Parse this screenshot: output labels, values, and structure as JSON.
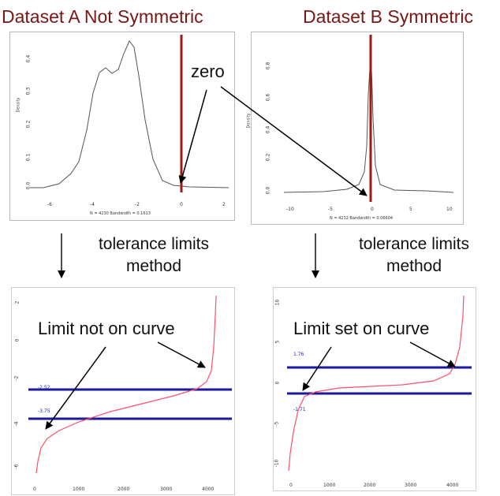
{
  "titles": {
    "a": "Dataset A Not Symmetric",
    "b": "Dataset B Symmetric"
  },
  "colors": {
    "title": "#7a1614",
    "zero_line": "#9b1b1b",
    "limit_line": "#1a1a9a",
    "quantile_curve": "#ff4f6d"
  },
  "annotations": {
    "zero": "zero",
    "limit_not_on_curve": "Limit not on curve",
    "limit_set_on_curve": "Limit set on curve"
  },
  "captions": {
    "a_line1": "tolerance limits",
    "a_line2": "method",
    "b_line1": "tolerance limits",
    "b_line2": "method"
  },
  "density_a": {
    "ylabel": "Density",
    "xticks": [
      "-6",
      "-4",
      "-2",
      "0",
      "2"
    ],
    "yticks": [
      "0.0",
      "0.1",
      "0.2",
      "0.3",
      "0.4"
    ],
    "footer": "N = 4230   Bandwidth = 0.1613"
  },
  "density_b": {
    "ylabel": "Density",
    "xticks": [
      "-10",
      "-5",
      "0",
      "5",
      "10"
    ],
    "yticks": [
      "0.0",
      "0.2",
      "0.4",
      "0.6",
      "0.8"
    ],
    "footer": "N = 4232   Bandwidth = 0.06604"
  },
  "quantile_a": {
    "xticks": [
      "0",
      "1000",
      "2000",
      "3000",
      "4000"
    ],
    "yticks": [
      "2",
      "0",
      "-2",
      "-4",
      "-6"
    ],
    "upper_limit": "-2.52",
    "lower_limit": "-3.75"
  },
  "quantile_b": {
    "xticks": [
      "0",
      "1000",
      "2000",
      "3000",
      "4000"
    ],
    "yticks": [
      "10",
      "5",
      "0",
      "-5",
      "-10"
    ],
    "upper_limit": "1.76",
    "lower_limit": "-1.71"
  }
}
